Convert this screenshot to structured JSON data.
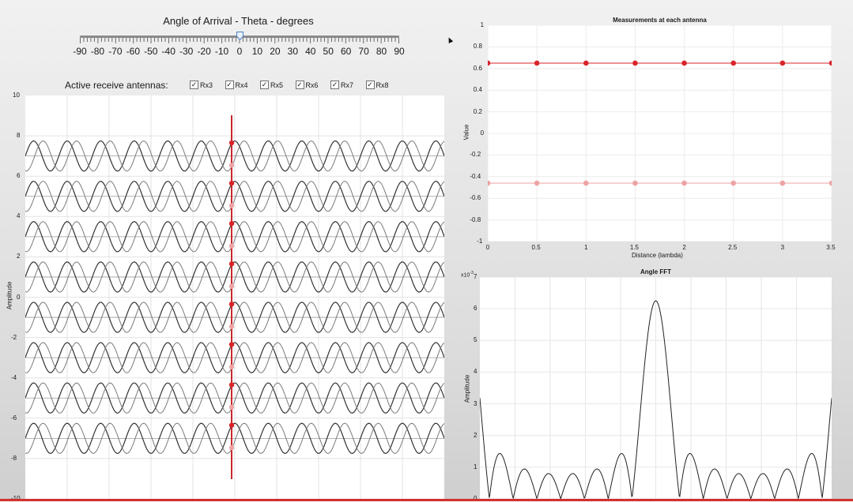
{
  "slider": {
    "title": "Angle of Arrival - Theta - degrees",
    "min": -90,
    "max": 90,
    "value": 0,
    "tick_labels": [
      "-90",
      "-80",
      "-70",
      "-60",
      "-50",
      "-40",
      "-30",
      "-20",
      "-10",
      "0",
      "10",
      "20",
      "30",
      "40",
      "50",
      "60",
      "70",
      "80",
      "90"
    ]
  },
  "antennas": {
    "label": "Active receive antennas:",
    "items": [
      {
        "label": "Rx3",
        "checked": true
      },
      {
        "label": "Rx4",
        "checked": true
      },
      {
        "label": "Rx5",
        "checked": true
      },
      {
        "label": "Rx6",
        "checked": true
      },
      {
        "label": "Rx7",
        "checked": true
      },
      {
        "label": "Rx8",
        "checked": true
      }
    ]
  },
  "colors": {
    "marker_dark": "#d9242a",
    "marker_light": "#eea3a3",
    "wave_dark": "#333333",
    "wave_light": "#7a7a7a",
    "plot_bg": "#ffffff"
  },
  "chart_data": [
    {
      "type": "line",
      "title": "",
      "ylabel": "Amplitude",
      "xlabel": "",
      "ylim": [
        -10,
        10
      ],
      "yticks": [
        "10",
        "8",
        "6",
        "4",
        "2",
        "0",
        "-2",
        "-4",
        "-6",
        "-8",
        "-10"
      ],
      "grid": true,
      "offsets": [
        7,
        5,
        3,
        1,
        -1,
        -3,
        -5,
        -7
      ],
      "amplitude": 0.75,
      "cycles_visible": 12.5,
      "marker_samples": {
        "dark": 0.65,
        "light": -0.46
      }
    },
    {
      "type": "scatter",
      "title": "Measurements at each antenna",
      "xlabel": "Distance (lambda)",
      "ylabel": "Value",
      "xlim": [
        0,
        3.5
      ],
      "ylim": [
        -1,
        1
      ],
      "xticks": [
        "0",
        "0.5",
        "1",
        "1.5",
        "2",
        "2.5",
        "3",
        "3.5"
      ],
      "yticks": [
        "1",
        "0.8",
        "0.6",
        "0.4",
        "0.2",
        "0",
        "-0.2",
        "-0.4",
        "-0.6",
        "-0.8",
        "-1"
      ],
      "grid": true,
      "x": [
        0,
        0.5,
        1,
        1.5,
        2,
        2.5,
        3,
        3.5
      ],
      "series": [
        {
          "values": [
            0.65,
            0.65,
            0.65,
            0.65,
            0.65,
            0.65,
            0.65,
            0.65
          ]
        },
        {
          "values": [
            -0.46,
            -0.46,
            -0.46,
            -0.46,
            -0.46,
            -0.46,
            -0.46,
            -0.46
          ]
        }
      ]
    },
    {
      "type": "line",
      "title": "Angle FFT",
      "ylabel": "Amplitude",
      "exponent_label": "x10",
      "exponent_value": "-3",
      "ylim": [
        0,
        7
      ],
      "yticks": [
        "7",
        "6",
        "5",
        "4",
        "3",
        "2",
        "1",
        "0"
      ],
      "grid": true,
      "peak": 6.25,
      "num_elements": 8,
      "x_range_fraction": [
        -1.85,
        1.85
      ]
    }
  ]
}
